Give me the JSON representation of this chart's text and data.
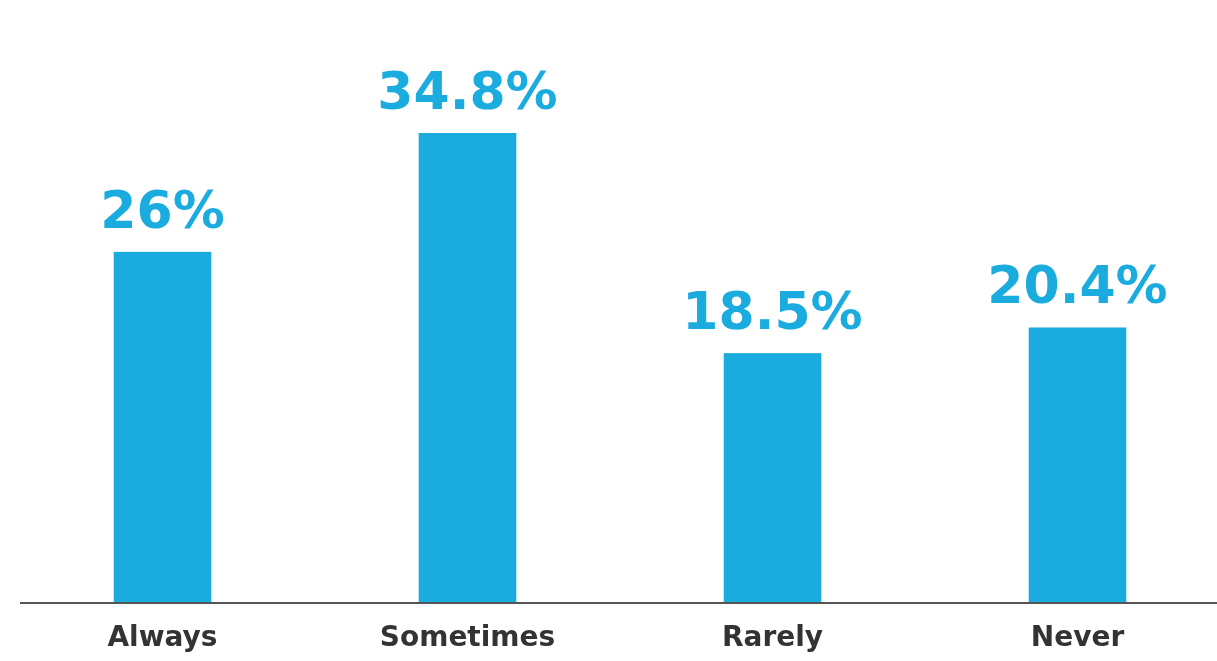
{
  "chart_data": {
    "type": "bar",
    "categories": [
      "Always",
      "Sometimes",
      "Rarely",
      "Never"
    ],
    "values": [
      26,
      34.8,
      18.5,
      20.4
    ],
    "value_labels": [
      "26%",
      "34.8%",
      "18.5%",
      "20.4%"
    ],
    "color": "#1aabdf"
  }
}
